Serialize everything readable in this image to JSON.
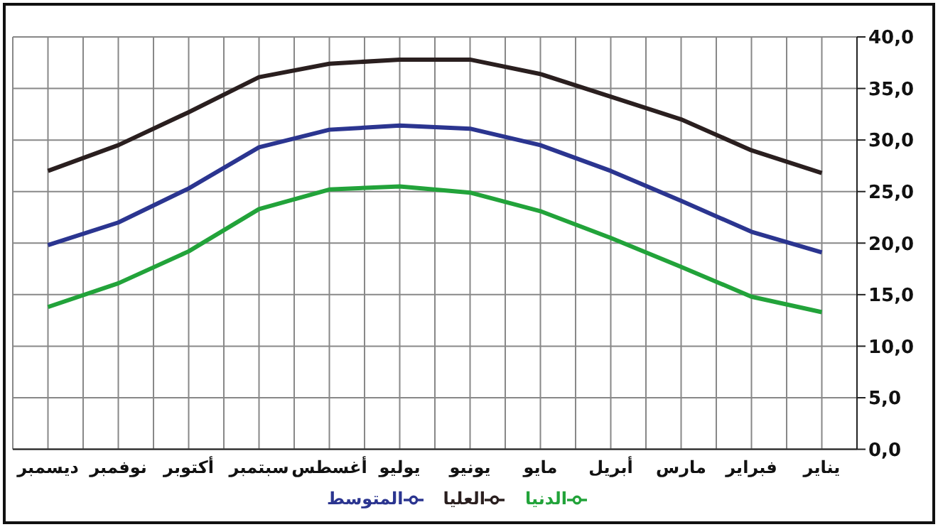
{
  "chart_data": {
    "type": "line",
    "categories": [
      "ديسمبر",
      "نوفمبر",
      "أكتوبر",
      "سبتمبر",
      "أغسطس",
      "يوليو",
      "يونيو",
      "مايو",
      "أبريل",
      "مارس",
      "فبراير",
      "يناير"
    ],
    "series": [
      {
        "name": "المتوسط",
        "color": "#2b3590",
        "values": [
          19.8,
          22.0,
          25.3,
          29.3,
          31.0,
          31.4,
          31.1,
          29.5,
          27.0,
          24.1,
          21.1,
          19.1
        ]
      },
      {
        "name": "العليا",
        "color": "#2a1f1f",
        "values": [
          27.0,
          29.5,
          32.7,
          36.1,
          37.4,
          37.8,
          37.8,
          36.4,
          34.2,
          32.0,
          29.0,
          26.8
        ]
      },
      {
        "name": "الدنيا",
        "color": "#22a33a",
        "values": [
          13.8,
          16.1,
          19.2,
          23.3,
          25.2,
          25.5,
          24.9,
          23.1,
          20.5,
          17.7,
          14.8,
          13.3
        ]
      }
    ],
    "ylim": [
      0,
      40
    ],
    "yticks": [
      {
        "value": 0,
        "label": "0,0"
      },
      {
        "value": 5,
        "label": "5,0"
      },
      {
        "value": 10,
        "label": "10,0"
      },
      {
        "value": 15,
        "label": "15,0"
      },
      {
        "value": 20,
        "label": "20,0"
      },
      {
        "value": 25,
        "label": "25,0"
      },
      {
        "value": 30,
        "label": "30,0"
      },
      {
        "value": 35,
        "label": "35,0"
      },
      {
        "value": 40,
        "label": "40,0"
      }
    ],
    "grid": true,
    "legend": "bottom",
    "marker": "none",
    "line_style": "solid"
  }
}
